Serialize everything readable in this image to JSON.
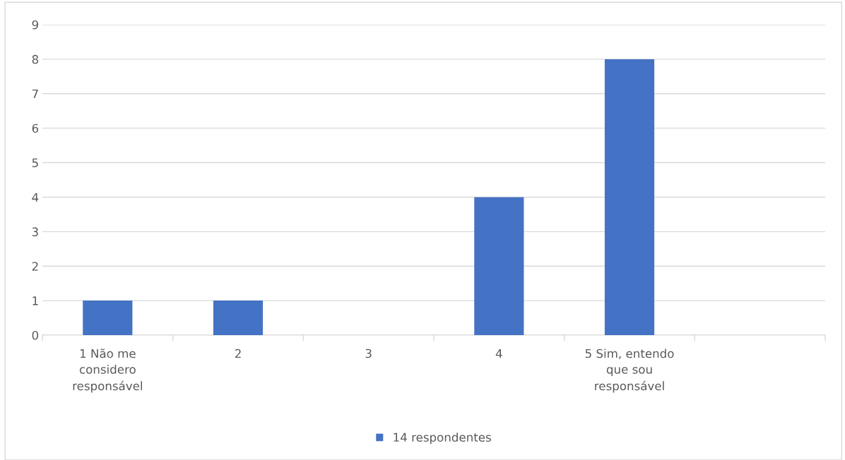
{
  "chart_data": {
    "type": "bar",
    "categories": [
      "1 Não me considero responsável",
      "2",
      "3",
      "4",
      "5 Sim, entendo que sou responsável",
      null
    ],
    "series": [
      {
        "name": "14 respondentes",
        "color": "#4472c4",
        "values": [
          1,
          1,
          0,
          4,
          8,
          null
        ]
      }
    ],
    "ylim": [
      0,
      9
    ],
    "yticks": [
      0,
      1,
      2,
      3,
      4,
      5,
      6,
      7,
      8,
      9
    ],
    "grid": "y",
    "legend": "bottom"
  }
}
